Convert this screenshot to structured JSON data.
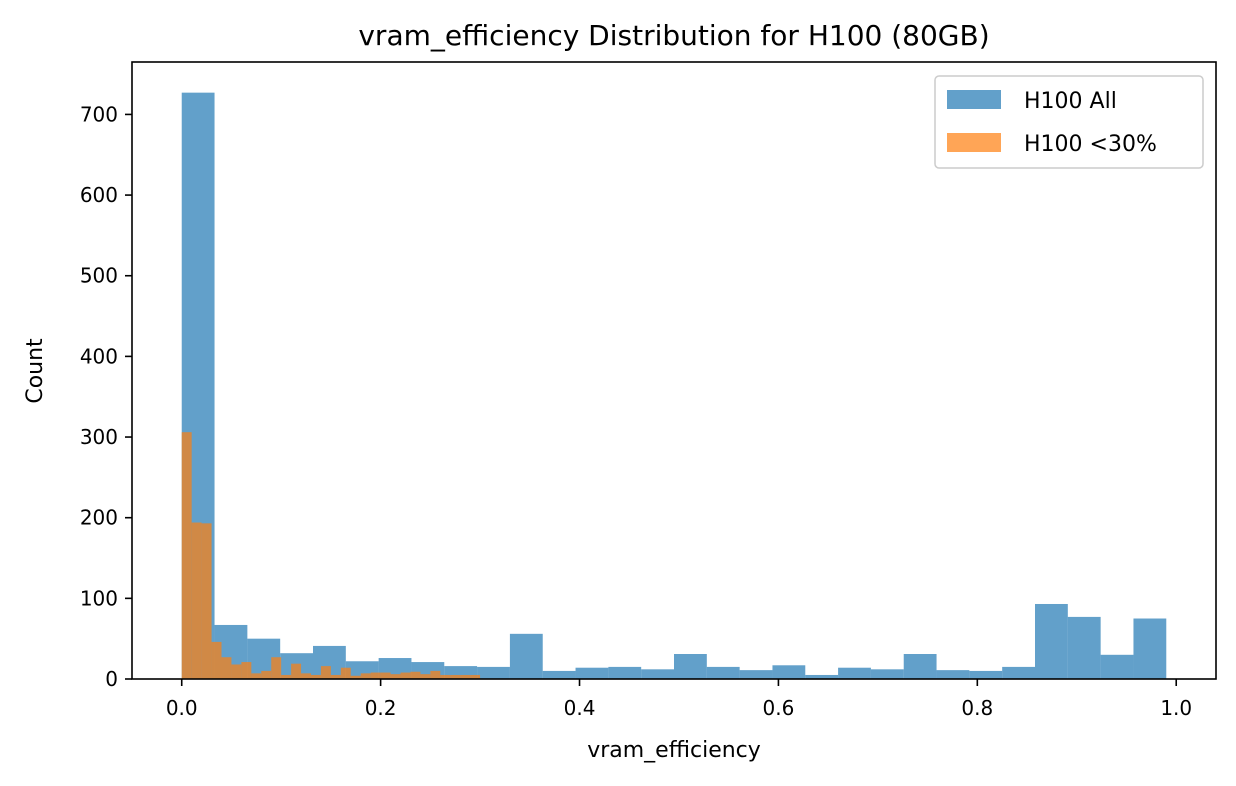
{
  "chart_data": {
    "type": "bar",
    "title": "vram_efficiency Distribution for H100 (80GB)",
    "xlabel": "vram_efficiency",
    "ylabel": "Count",
    "xlim": [
      -0.05,
      1.04
    ],
    "ylim": [
      0,
      765
    ],
    "xticks": [
      "0.0",
      "0.2",
      "0.4",
      "0.6",
      "0.8",
      "1.0"
    ],
    "yticks": [
      "0",
      "100",
      "200",
      "300",
      "400",
      "500",
      "600",
      "700"
    ],
    "grid": false,
    "legend_position": "top-right",
    "series": [
      {
        "name": "H100 All",
        "color": "#1f77b4",
        "opacity": 0.7,
        "bin_edges": [
          0.0,
          0.033,
          0.066,
          0.099,
          0.132,
          0.165,
          0.198,
          0.231,
          0.264,
          0.297,
          0.33,
          0.363,
          0.396,
          0.429,
          0.462,
          0.495,
          0.528,
          0.561,
          0.594,
          0.627,
          0.66,
          0.693,
          0.726,
          0.759,
          0.792,
          0.825,
          0.858,
          0.891,
          0.924,
          0.957,
          0.99
        ],
        "counts": [
          727,
          67,
          50,
          32,
          41,
          22,
          26,
          21,
          16,
          15,
          56,
          10,
          14,
          15,
          12,
          31,
          15,
          11,
          17,
          5,
          14,
          12,
          31,
          11,
          10,
          15,
          93,
          77,
          30,
          75
        ]
      },
      {
        "name": "H100 <30%",
        "color": "#ff7f0e",
        "opacity": 0.7,
        "bin_edges": [
          0.0,
          0.01,
          0.02,
          0.03,
          0.04,
          0.05,
          0.06,
          0.07,
          0.08,
          0.09,
          0.1,
          0.11,
          0.12,
          0.13,
          0.14,
          0.15,
          0.16,
          0.17,
          0.18,
          0.19,
          0.2,
          0.21,
          0.22,
          0.23,
          0.24,
          0.25,
          0.26,
          0.27,
          0.28,
          0.29,
          0.3
        ],
        "counts": [
          306,
          194,
          193,
          46,
          27,
          18,
          21,
          7,
          10,
          27,
          5,
          19,
          7,
          5,
          16,
          5,
          14,
          4,
          7,
          8,
          8,
          6,
          8,
          9,
          6,
          10,
          5,
          5,
          5,
          5
        ]
      }
    ]
  }
}
